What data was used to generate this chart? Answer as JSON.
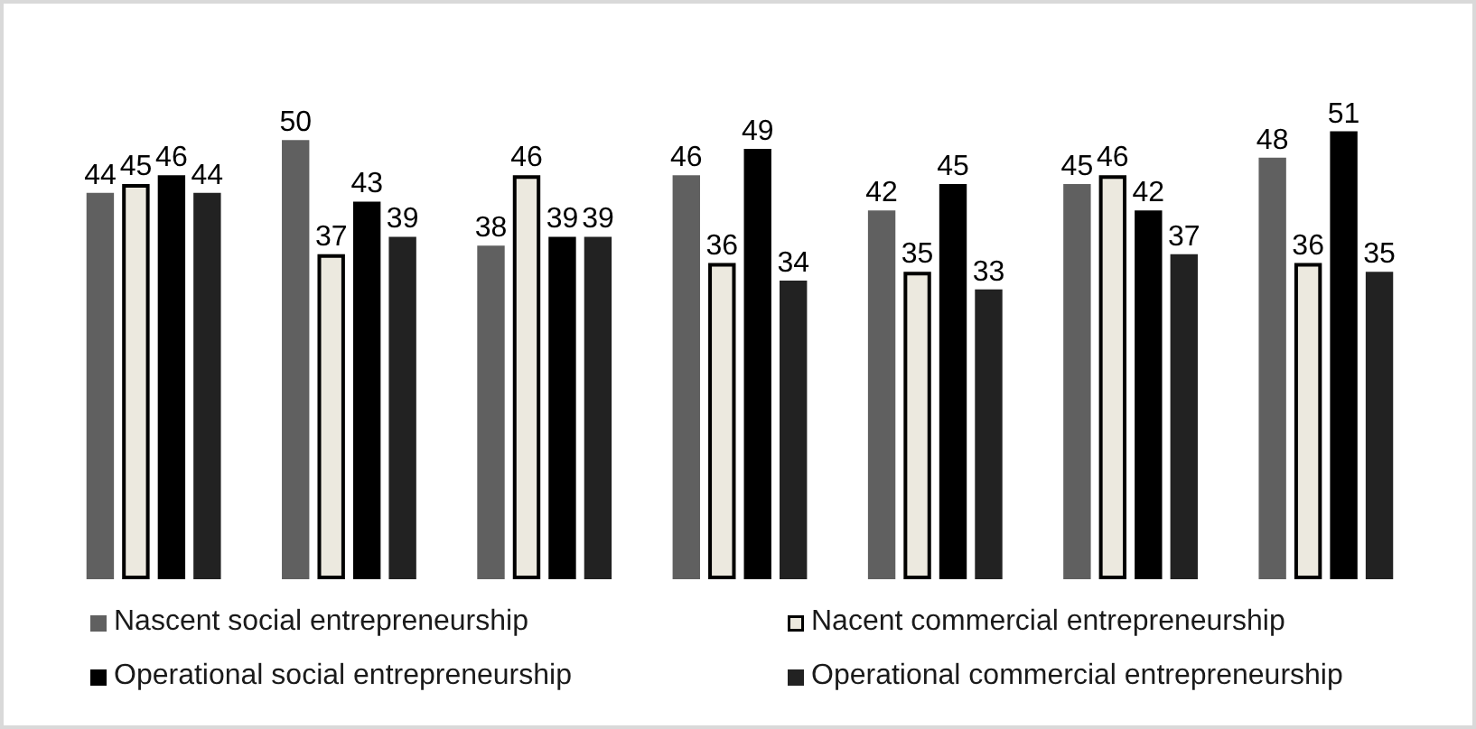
{
  "chart_data": {
    "type": "bar",
    "categories": [
      null,
      null,
      null,
      null,
      null,
      null,
      null
    ],
    "series": [
      {
        "name": "Nascent social entrepreneurship",
        "color": "#606060",
        "values": [
          44,
          50,
          38,
          46,
          42,
          45,
          48
        ]
      },
      {
        "name": "Nacent commercial entrepreneurship",
        "color": "#ece9df",
        "values": [
          45,
          37,
          46,
          36,
          35,
          46,
          36
        ]
      },
      {
        "name": "Operational social entrepreneurship",
        "color": "#000000",
        "values": [
          46,
          43,
          39,
          49,
          45,
          42,
          51
        ]
      },
      {
        "name": "Operational commercial entrepreneurship",
        "color": "#222222",
        "values": [
          44,
          39,
          39,
          34,
          33,
          37,
          35
        ]
      }
    ],
    "data_labels": true,
    "legend": "bottom",
    "tick_labels": false,
    "grid": false
  }
}
